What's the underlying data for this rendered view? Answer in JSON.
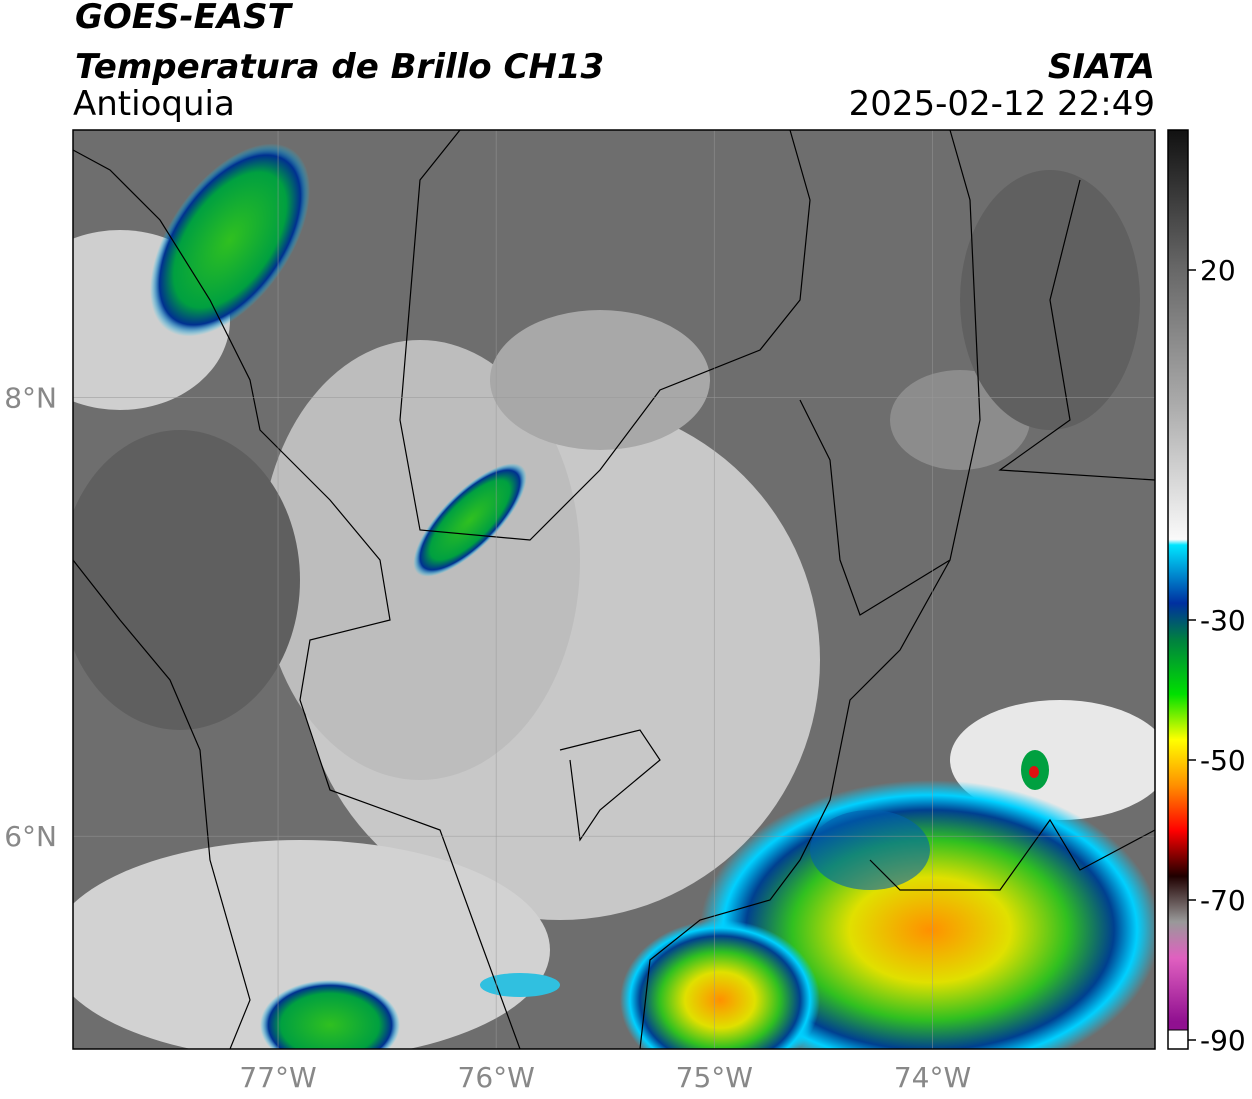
{
  "header": {
    "title": "GOES-EAST",
    "subtitle": "Temperatura de Brillo CH13",
    "region": "Antioquia",
    "source": "SIATA",
    "datetime": "2025-02-12 22:49"
  },
  "map": {
    "xlim": [
      -77.94,
      -72.98
    ],
    "ylim": [
      5.03,
      9.22
    ],
    "xticks": [
      {
        "value": -77,
        "label": "77°W"
      },
      {
        "value": -76,
        "label": "76°W"
      },
      {
        "value": -75,
        "label": "75°W"
      },
      {
        "value": -74,
        "label": "74°W"
      }
    ],
    "yticks": [
      {
        "value": 8,
        "label": "8°N"
      },
      {
        "value": 6,
        "label": "6°N"
      }
    ],
    "grid": true
  },
  "colorbar": {
    "lim": [
      -90,
      40
    ],
    "ticks": [
      20,
      -30,
      -50,
      -70,
      -90
    ]
  }
}
